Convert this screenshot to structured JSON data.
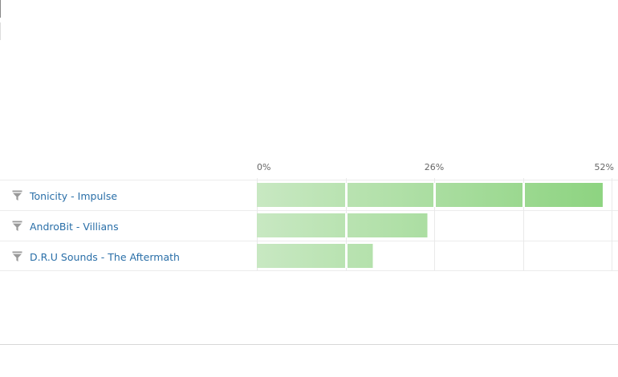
{
  "colors": {
    "link": "#2a6fa8",
    "bar_light": "#c8e8c2",
    "bar_dark": "#8cd37f",
    "grid": "#e9e9e9",
    "tick_text": "#666666",
    "icon": "#9a9a9a"
  },
  "icons": {
    "row_filter": "filter-icon"
  },
  "chart_data": {
    "type": "bar",
    "orientation": "horizontal",
    "categories": [
      "Tonicity - Impulse",
      "AndroBit - Villians",
      "D.R.U Sounds - The Aftermath"
    ],
    "values": [
      50.7,
      25.0,
      17.0
    ],
    "xlim": [
      0,
      52
    ],
    "x_ticks": [
      "0%",
      "26%",
      "52%"
    ],
    "tick_values": [
      0,
      26,
      52
    ],
    "grid": true,
    "title": "",
    "xlabel": "",
    "ylabel": ""
  }
}
